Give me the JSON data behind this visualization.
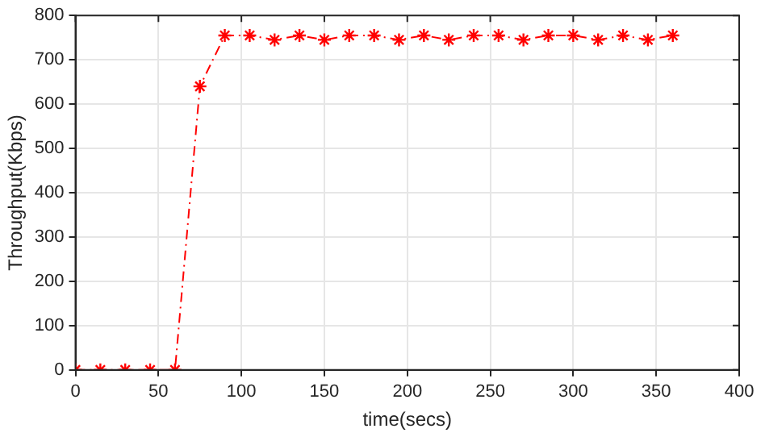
{
  "chart_data": {
    "type": "line",
    "xlabel": "time(secs)",
    "ylabel": "Throughput(Kbps)",
    "x": [
      0,
      15,
      30,
      45,
      60,
      75,
      90,
      105,
      120,
      135,
      150,
      165,
      180,
      195,
      210,
      225,
      240,
      255,
      270,
      285,
      300,
      315,
      330,
      345,
      360
    ],
    "series": [
      {
        "color": "#ff0000",
        "values": [
          0,
          0,
          0,
          0,
          0,
          640,
          755,
          755,
          745,
          755,
          745,
          755,
          755,
          745,
          755,
          745,
          755,
          755,
          745,
          755,
          755,
          745,
          755,
          745,
          755
        ]
      }
    ],
    "xlim": [
      0,
      400
    ],
    "xticks": [
      0,
      50,
      100,
      150,
      200,
      250,
      300,
      350,
      400
    ],
    "ylim": [
      0,
      800
    ],
    "yticks": [
      0,
      100,
      200,
      300,
      400,
      500,
      600,
      700,
      800
    ],
    "grid": true,
    "marker": "cross",
    "line_style": "dashed"
  }
}
